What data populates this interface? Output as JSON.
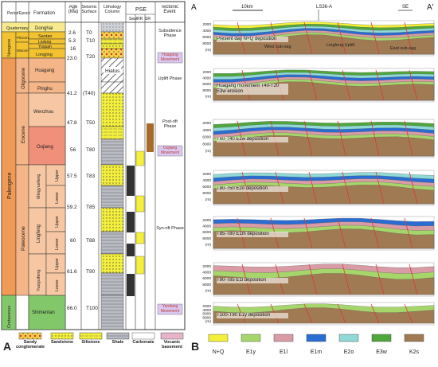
{
  "panelA": {
    "label": "A",
    "headers": {
      "period": "Period",
      "epoch": "Epoch",
      "formation": "Formation",
      "age": "Age (Ma)",
      "seismic": "Seismic Surface",
      "lithology": "Lithology Column",
      "pse": "PSE",
      "seal": "Seal",
      "rr": "RR",
      "sr": "SR",
      "tectonic": "Tectonic Event"
    },
    "periods": [
      "Quaternary",
      "Neogene",
      "Paleogene",
      "Cretaceous"
    ],
    "epochs": [
      "Pliocene",
      "Miocene",
      "Oligocene",
      "Eocene",
      "Paleocene"
    ],
    "sub_epochs": [
      "Upper",
      "Lower",
      "Upper",
      "Lower",
      "Upper",
      "Lower"
    ],
    "formations": [
      "Donghai",
      "Santan",
      "Liulang",
      "Yuquan",
      "Longjing",
      "Huagang",
      "Pinghu",
      "Wenzhou",
      "Oujiang",
      "Mingyuefeng",
      "Lingfeng",
      "Yueguifeng",
      "Shimentan"
    ],
    "ages": [
      "2.6",
      "5.3",
      "16",
      "23.0",
      "41.2",
      "47.8",
      "56",
      "57.5",
      "59.2",
      "60",
      "61.6",
      "66.0"
    ],
    "surfaces": [
      "T0",
      "T10",
      "T20",
      "(T40)",
      "T50",
      "T80",
      "T83",
      "T85",
      "T88",
      "T90",
      "T100"
    ],
    "hiatus": "Hiatus",
    "tectonic_events": [
      "Subsidence Phase",
      "Huagang Movement",
      "Uplift Phase",
      "Post-rift Phase",
      "Oujiang Movement",
      "Syn-rift Phase",
      "Yandang Movement"
    ],
    "legend": [
      "Sandy conglomerate",
      "Sandstone",
      "Siltstone",
      "Shale",
      "Carbonate",
      "Vocanic basement"
    ]
  },
  "panelB": {
    "label": "B",
    "corner_left": "A",
    "corner_right": "A'",
    "scale": "10km",
    "well": "LS36-A",
    "direction": "SE",
    "depth_ticks": [
      "2000",
      "4000",
      "6000",
      "8000",
      "(m)"
    ],
    "annotations": [
      "West sub-sag",
      "Lingfeng Uplift",
      "East sub-sag"
    ],
    "sections": [
      "Present day N+Q deposition",
      "Huagang movement T40-T20 E3w erosion",
      "T50-T40 E2w deposition",
      "T80-T50 E2o deposition",
      "T85-T80 E1m deposition",
      "T90-T85 E1l deposition",
      "T100-T90 E1y deposition"
    ],
    "legend": [
      "N+Q",
      "E1y",
      "E1l",
      "E1m",
      "E2o",
      "E3w",
      "K2s"
    ]
  },
  "colors": {
    "nq": "#f4f03a",
    "e1y": "#a6d66b",
    "e1l": "#d99ba5",
    "e1m": "#2a6dd2",
    "e2o": "#8fd9d6",
    "e3w": "#4fa63a",
    "k2s": "#a07a52",
    "paleogene": "#f09a55",
    "neogene": "#f2c230",
    "quaternary": "#f7ea8c",
    "cretaceous": "#82c86a",
    "fault": "#d83a3a",
    "event": "#d9c8f2"
  }
}
